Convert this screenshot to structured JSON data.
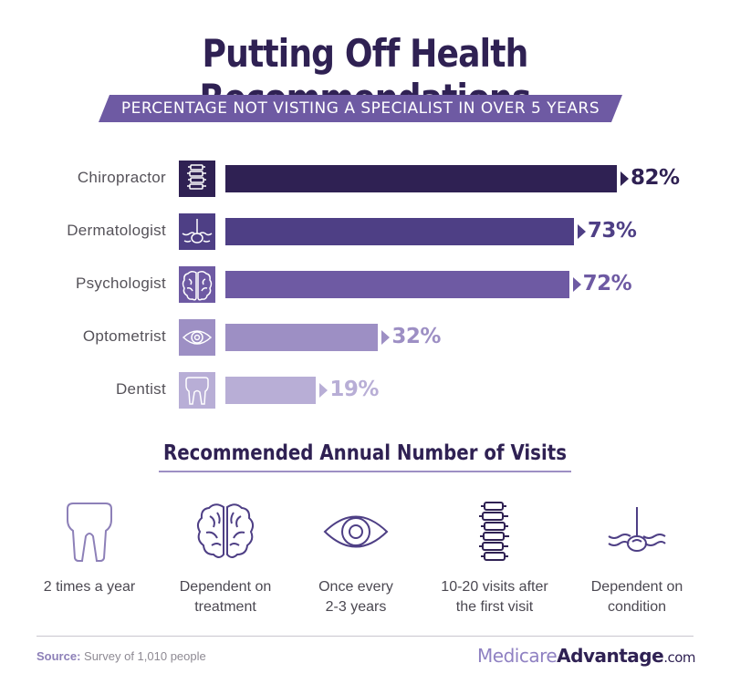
{
  "title": "Putting Off Health Recommendations",
  "subtitle": "PERCENTAGE NOT VISTING A SPECIALIST IN OVER 5 YEARS",
  "colors": {
    "title": "#2f2153",
    "banner": "#6e5aa3",
    "bars": [
      "#2f2153",
      "#4e3f85",
      "#6e5aa3",
      "#9d8fc4",
      "#b8aed6"
    ]
  },
  "chart_data": {
    "type": "bar",
    "orientation": "horizontal",
    "title": "Putting Off Health Recommendations",
    "subtitle": "PERCENTAGE NOT VISTING A SPECIALIST IN OVER 5 YEARS",
    "categories": [
      "Chiropractor",
      "Dermatologist",
      "Psychologist",
      "Optometrist",
      "Dentist"
    ],
    "values": [
      82,
      73,
      72,
      32,
      19
    ],
    "value_labels": [
      "82%",
      "73%",
      "72%",
      "32%",
      "19%"
    ],
    "icons": [
      "spine-icon",
      "hair-follicle-icon",
      "brain-icon",
      "eye-icon",
      "tooth-icon"
    ],
    "xlim": [
      0,
      100
    ],
    "grid": false,
    "legend": "none"
  },
  "visits": {
    "title": "Recommended Annual Number of Visits",
    "items": [
      {
        "icon": "tooth-icon",
        "text": [
          "2 times a year"
        ]
      },
      {
        "icon": "brain-icon",
        "text": [
          "Dependent on",
          "treatment"
        ]
      },
      {
        "icon": "eye-icon",
        "text": [
          "Once every",
          "2-3 years"
        ]
      },
      {
        "icon": "spine-icon",
        "text": [
          "10-20 visits after",
          "the first visit"
        ]
      },
      {
        "icon": "hair-follicle-icon",
        "text": [
          "Dependent on",
          "condition"
        ]
      }
    ]
  },
  "footer": {
    "source_label": "Source:",
    "source_text": "Survey of 1,010 people",
    "brand_part1": "Medicare",
    "brand_part2": "Advantage",
    "brand_part3": ".com"
  }
}
